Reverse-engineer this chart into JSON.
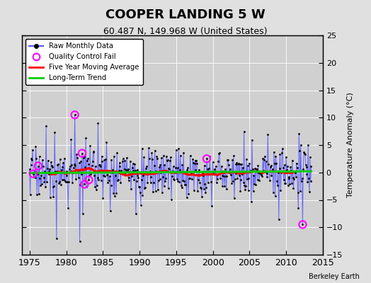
{
  "title": "COOPER LANDING 5 W",
  "subtitle": "60.487 N, 149.968 W (United States)",
  "ylabel": "Temperature Anomaly (°C)",
  "credit": "Berkeley Earth",
  "xlim": [
    1974.0,
    2015.0
  ],
  "ylim": [
    -15,
    25
  ],
  "yticks": [
    -15,
    -10,
    -5,
    0,
    5,
    10,
    15,
    20,
    25
  ],
  "xticks": [
    1975,
    1980,
    1985,
    1990,
    1995,
    2000,
    2005,
    2010,
    2015
  ],
  "fig_bg_color": "#e0e0e0",
  "plot_bg_color": "#d0d0d0",
  "raw_line_color": "#5555ff",
  "raw_marker_color": "#000000",
  "moving_avg_color": "#ff0000",
  "trend_color": "#00cc00",
  "qc_fail_color": "#ff00ff",
  "grid_color": "#ffffff"
}
